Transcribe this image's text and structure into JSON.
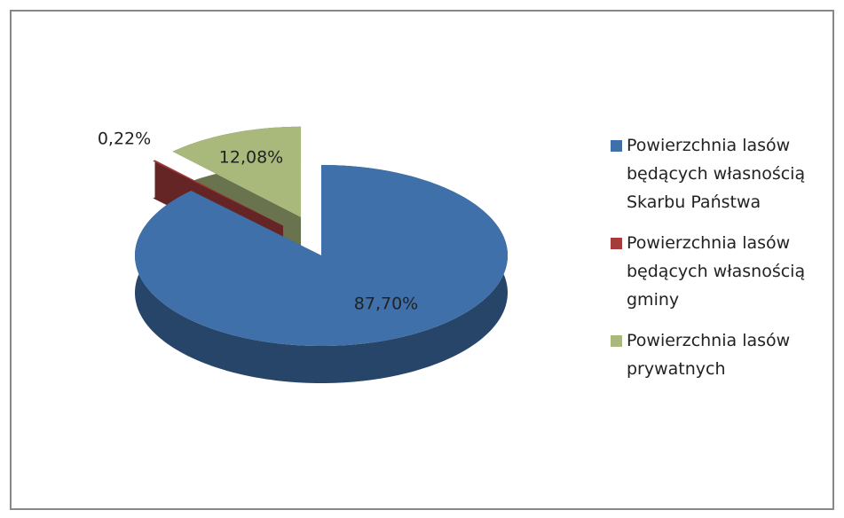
{
  "chart_data": {
    "type": "pie",
    "categories": [
      "Powierzchnia lasów będących własnością Skarbu Państwa",
      "Powierzchnia lasów będących własnością gminy",
      "Powierzchnia lasów prywatnych"
    ],
    "values": [
      87.7,
      0.22,
      12.08
    ],
    "value_labels": [
      "87,70%",
      "0,22%",
      "12,08%"
    ],
    "colors": [
      "#3f70aa",
      "#a53b3b",
      "#a9b97c"
    ],
    "legend": "right"
  }
}
